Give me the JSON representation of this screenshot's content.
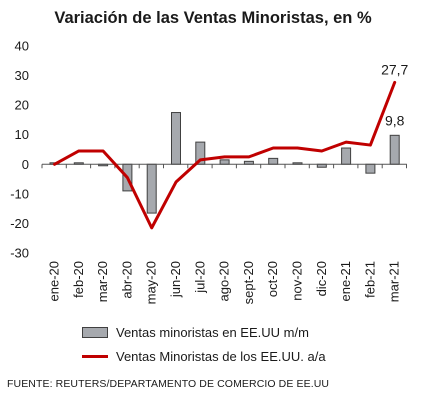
{
  "title": "Variación de las Ventas Minoristas, en %",
  "source": "FUENTE: REUTERS/DEPARTAMENTO DE COMERCIO DE EE.UU",
  "colors": {
    "bar_fill": "#a6a9ae",
    "bar_stroke": "#404040",
    "line": "#c00000"
  },
  "chart_data": {
    "type": "bar",
    "title": "Variación de las Ventas Minoristas, en %",
    "categories": [
      "ene-20",
      "feb-20",
      "mar-20",
      "abr-20",
      "may-20",
      "jun-20",
      "jul-20",
      "ago-20",
      "sept-20",
      "oct-20",
      "nov-20",
      "dic-20",
      "ene-21",
      "feb-21",
      "mar-21"
    ],
    "ylim": [
      -30,
      40
    ],
    "yticks": [
      -30,
      -20,
      -10,
      0,
      10,
      20,
      30,
      40
    ],
    "grid": false,
    "legend_position": "bottom",
    "series": [
      {
        "name": "Ventas minoristas en EE.UU m/m",
        "type": "bar",
        "values": [
          0.5,
          0.5,
          -0.5,
          -9,
          -16.5,
          17.5,
          7.5,
          1.5,
          1,
          2,
          0.5,
          -1,
          5.5,
          -3,
          9.8
        ]
      },
      {
        "name": "Ventas Minoristas de los EE.UU. a/a",
        "type": "line",
        "values": [
          0,
          4.5,
          4.5,
          -4.5,
          -21.5,
          -6,
          1.5,
          2.5,
          2.5,
          5.5,
          5.5,
          4.5,
          7.5,
          6.5,
          27.7
        ]
      }
    ],
    "data_labels": [
      {
        "series": 0,
        "index": 14,
        "text": "9,8"
      },
      {
        "series": 1,
        "index": 14,
        "text": "27,7"
      }
    ]
  }
}
